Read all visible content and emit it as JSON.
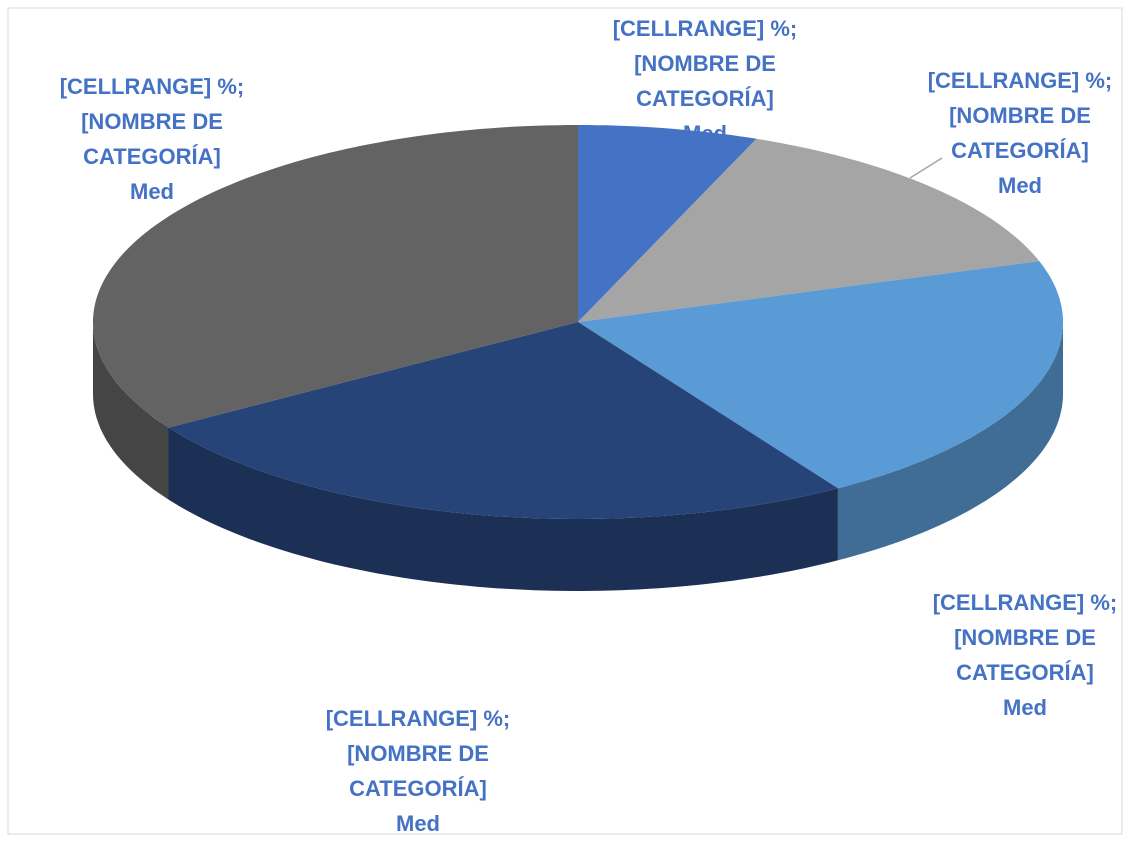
{
  "chart_data": {
    "type": "pie3d",
    "values": [
      6,
      14,
      21,
      25,
      34
    ],
    "colors": [
      "#4472c4",
      "#a5a5a5",
      "#5b9bd5",
      "#264478",
      "#636363"
    ],
    "labels": [
      [
        "[CELLRANGE] %;",
        "[NOMBRE DE",
        "CATEGORÍA]",
        "Med"
      ],
      [
        "[CELLRANGE] %;",
        "[NOMBRE DE",
        "CATEGORÍA]",
        "Med"
      ],
      [
        "[CELLRANGE] %;",
        "[NOMBRE DE",
        "CATEGORÍA]",
        "Med"
      ],
      [
        "[CELLRANGE] %;",
        "[NOMBRE DE",
        "CATEGORÍA]",
        "Med"
      ],
      [
        "[CELLRANGE] %;",
        "[NOMBRE DE",
        "CATEGORÍA]",
        "Med"
      ]
    ]
  }
}
